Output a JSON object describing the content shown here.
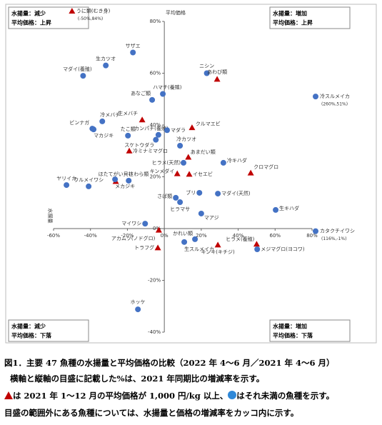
{
  "chart_data": {
    "type": "scatter",
    "y_axis_label": "平均価格",
    "x_axis_label": "水揚量",
    "xlim": [
      -60,
      80
    ],
    "ylim": [
      -40,
      80
    ],
    "xticks": [
      {
        "value": -60,
        "label": "-60%"
      },
      {
        "value": -40,
        "label": "-40%"
      },
      {
        "value": -20,
        "label": "-20%"
      },
      {
        "value": 0,
        "label": "0%"
      },
      {
        "value": 20,
        "label": "20%"
      },
      {
        "value": 40,
        "label": "40%"
      },
      {
        "value": 60,
        "label": "60%"
      },
      {
        "value": 80,
        "label": "80%"
      }
    ],
    "yticks": [
      {
        "value": -40,
        "label": "-40%"
      },
      {
        "value": -20,
        "label": "-20%"
      },
      {
        "value": 0,
        "label": "0%"
      },
      {
        "value": 20,
        "label": "20%"
      },
      {
        "value": 40,
        "label": "40%"
      },
      {
        "value": 60,
        "label": "60%"
      },
      {
        "value": 80,
        "label": "80%"
      }
    ],
    "colors": {
      "circle": "#4472c4",
      "triangle": "#c00000"
    },
    "quadrants": {
      "top_left": [
        "水揚量：減少",
        "平均価格：上昇"
      ],
      "top_right": [
        "水揚量：増加",
        "平均価格：上昇"
      ],
      "bottom_left": [
        "水揚量：減少",
        "平均価格：下落"
      ],
      "bottom_right": [
        "水揚量：増加",
        "平均価格：下落"
      ]
    },
    "points": [
      {
        "label": "サザエ",
        "marker": "circle",
        "x": -17,
        "y": 68
      },
      {
        "label": "生カツオ",
        "marker": "circle",
        "x": -31.7,
        "y": 63
      },
      {
        "label": "マダイ(養殖)",
        "marker": "circle",
        "x": -44,
        "y": 59
      },
      {
        "label": "ニシン",
        "marker": "circle",
        "x": 23,
        "y": 60
      },
      {
        "label": "あわび類",
        "marker": "triangle",
        "x": 28.6,
        "y": 57.7
      },
      {
        "label": "ハマチ(養殖)",
        "marker": "circle",
        "x": -0.8,
        "y": 52
      },
      {
        "label": "あなご類",
        "marker": "circle",
        "x": -6.6,
        "y": 49.7
      },
      {
        "label": "生メバチ",
        "marker": "triangle",
        "x": -12,
        "y": 42
      },
      {
        "label": "冷メバチ",
        "marker": "circle",
        "x": -33.6,
        "y": 41.4
      },
      {
        "label": "ビンナガ",
        "marker": "circle",
        "x": -39,
        "y": 38.6
      },
      {
        "label": "マカジキ",
        "marker": "circle",
        "x": -38.3,
        "y": 38.3
      },
      {
        "label": "たこ類",
        "marker": "circle",
        "x": -19.7,
        "y": 35.9
      },
      {
        "label": "カンパチ(養殖)",
        "marker": "circle",
        "x": -3.2,
        "y": 36.2
      },
      {
        "label": "スケトウダラ",
        "marker": "circle",
        "x": -4.6,
        "y": 34.3
      },
      {
        "label": "マダラ",
        "marker": "circle",
        "x": 1.5,
        "y": 38
      },
      {
        "label": "クルマエビ",
        "marker": "triangle",
        "x": 15,
        "y": 39
      },
      {
        "label": "冷カツオ",
        "marker": "circle",
        "x": 8.5,
        "y": 32
      },
      {
        "label": "冷ミナミマグロ",
        "marker": "triangle",
        "x": -19,
        "y": 30
      },
      {
        "label": "あまだい類",
        "marker": "triangle",
        "x": 13,
        "y": 27.6
      },
      {
        "label": "ヒラメ(天然)",
        "marker": "circle",
        "x": 10.4,
        "y": 25.4
      },
      {
        "label": "冷キハダ",
        "marker": "circle",
        "x": 32,
        "y": 25.4
      },
      {
        "label": "クロマグロ",
        "marker": "triangle",
        "x": 46.8,
        "y": 21.5
      },
      {
        "label": "キンメダイ",
        "marker": "triangle",
        "x": 7,
        "y": 21.2
      },
      {
        "label": "イセエビ",
        "marker": "triangle",
        "x": 13.5,
        "y": 21
      },
      {
        "label": "ほたてがい貝柱",
        "marker": "triangle",
        "x": -26.3,
        "y": 18.2
      },
      {
        "label": "メカジキ",
        "marker": "circle",
        "x": -26.7,
        "y": 19
      },
      {
        "label": "さわら類",
        "marker": "circle",
        "x": -19.3,
        "y": 18.5
      },
      {
        "label": "ヤリイカ",
        "marker": "circle",
        "x": -53,
        "y": 16.8
      },
      {
        "label": "ウルメイワシ",
        "marker": "circle",
        "x": -41,
        "y": 16.3
      },
      {
        "label": "ブリ",
        "marker": "circle",
        "x": 19,
        "y": 13.8
      },
      {
        "label": "マダイ(天然)",
        "marker": "circle",
        "x": 29,
        "y": 13.5
      },
      {
        "label": "さば類",
        "marker": "circle",
        "x": 6.2,
        "y": 11.9
      },
      {
        "label": "ヒラマサ",
        "marker": "circle",
        "x": 8.5,
        "y": 10.2
      },
      {
        "label": "マアジ",
        "marker": "circle",
        "x": 20,
        "y": 5.8
      },
      {
        "label": "生キハダ",
        "marker": "circle",
        "x": 60.3,
        "y": 7.2
      },
      {
        "label": "マイワシ",
        "marker": "circle",
        "x": -10.4,
        "y": 1.9
      },
      {
        "label": "アカムツ(ノドグロ)",
        "marker": "triangle",
        "x": -3,
        "y": -0.6
      },
      {
        "label": "トラフグ",
        "marker": "triangle",
        "x": -3.5,
        "y": -7.4
      },
      {
        "label": "かれい類",
        "marker": "circle",
        "x": 16.6,
        "y": -4.1
      },
      {
        "label": "生スルメイカ",
        "marker": "circle",
        "x": 10.8,
        "y": -5.2
      },
      {
        "label": "キンキ(キチジ)",
        "marker": "triangle",
        "x": 29,
        "y": -6.3
      },
      {
        "label": "ヒラメ(養殖)",
        "marker": "triangle",
        "x": 50,
        "y": -6
      },
      {
        "label": "メジマグロ(ヨコワ)",
        "marker": "circle",
        "x": 50.3,
        "y": -8
      },
      {
        "label": "ホッケ",
        "marker": "circle",
        "x": -14.3,
        "y": -31.2
      }
    ],
    "outliers": [
      {
        "label": "うに類(むき身)",
        "marker": "triangle",
        "x": -50,
        "y": 84,
        "value_label": "(-50%,84%)"
      },
      {
        "label": "冷スルメイカ",
        "marker": "circle",
        "x": 260,
        "y": 51,
        "value_label": "(260%,51%)"
      },
      {
        "label": "カタクチイワシ",
        "marker": "circle",
        "x": 116,
        "y": -1,
        "value_label": "(116%,-1%)"
      }
    ]
  },
  "caption": {
    "line1": "図1．主要 47 魚種の水揚量と平均価格の比較（2022 年 4～6 月／2021 年 4～6 月）",
    "line2": "横軸と縦軸の目盛に記載した%は、2021 年同期比の増減率を示す。",
    "line3a": "は 2021 年 1～12 月の平均価格が 1,000 円/kg 以上、",
    "line3b": "はそれ未満の魚種を示す。",
    "line4": "目盛の範囲外にある魚種については、水揚量と価格の増減率をカッコ内に示す。"
  }
}
